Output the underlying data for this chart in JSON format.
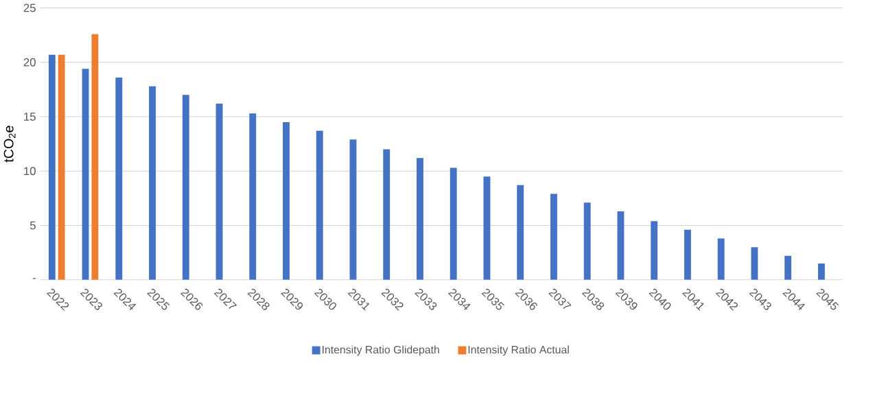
{
  "chart_data": {
    "type": "bar",
    "ylabel": "tCO$_{2}$e",
    "categories": [
      "2022",
      "2023",
      "2024",
      "2025",
      "2026",
      "2027",
      "2028",
      "2029",
      "2030",
      "2031",
      "2032",
      "2033",
      "2034",
      "2035",
      "2036",
      "2037",
      "2038",
      "2039",
      "2040",
      "2041",
      "2042",
      "2043",
      "2044",
      "2045"
    ],
    "series": [
      {
        "name": "Intensity Ratio Glidepath",
        "color": "#4472c4",
        "values": [
          20.7,
          19.4,
          18.6,
          17.8,
          17.0,
          16.2,
          15.3,
          14.5,
          13.7,
          12.9,
          12.0,
          11.2,
          10.3,
          9.5,
          8.7,
          7.9,
          7.1,
          6.3,
          5.4,
          4.6,
          3.8,
          3.0,
          2.2,
          1.5
        ]
      },
      {
        "name": "Intensity Ratio Actual",
        "color": "#ed7d31",
        "values": [
          20.7,
          22.6,
          null,
          null,
          null,
          null,
          null,
          null,
          null,
          null,
          null,
          null,
          null,
          null,
          null,
          null,
          null,
          null,
          null,
          null,
          null,
          null,
          null,
          null
        ]
      }
    ],
    "ylim": [
      0,
      25
    ],
    "yticks": [
      {
        "value": 0,
        "label": "-"
      },
      5,
      10,
      15,
      20,
      25
    ],
    "grid": "y",
    "legend": "bottom"
  }
}
